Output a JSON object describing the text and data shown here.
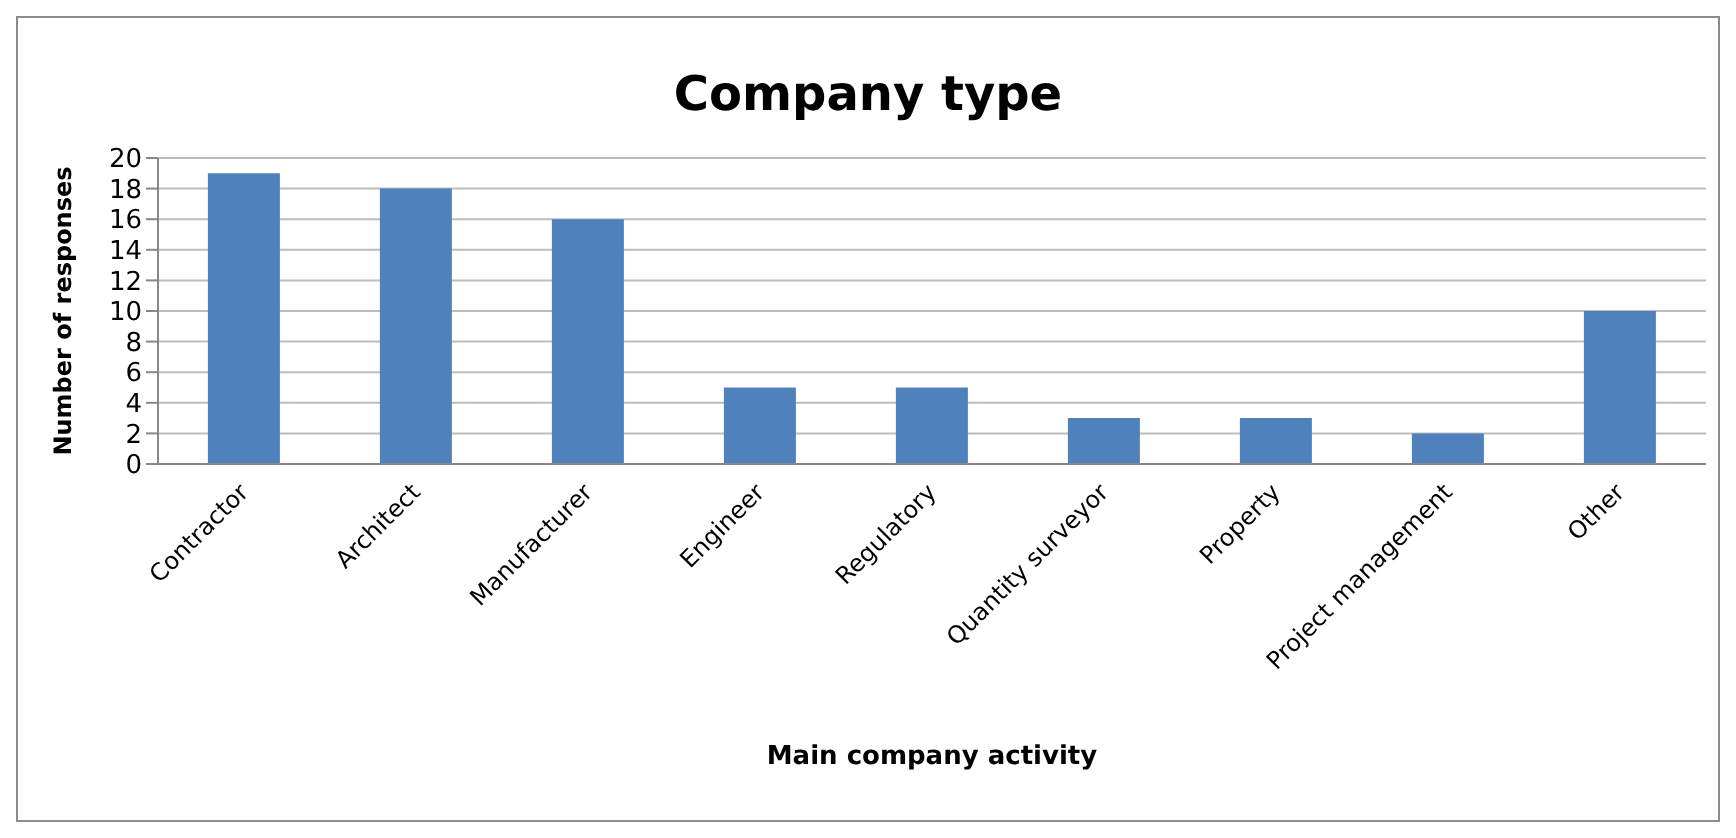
{
  "chart_data": {
    "type": "bar",
    "title": "Company type",
    "xlabel": "Main company activity",
    "ylabel": "Number of responses",
    "categories": [
      "Contractor",
      "Architect",
      "Manufacturer",
      "Engineer",
      "Regulatory",
      "Quantity surveyor",
      "Property",
      "Project management",
      "Other"
    ],
    "values": [
      19,
      18,
      16,
      5,
      5,
      3,
      3,
      2,
      10
    ],
    "color": "#4f81bd",
    "ylim": [
      0,
      20
    ],
    "yticks": [
      0,
      2,
      4,
      6,
      8,
      10,
      12,
      14,
      16,
      18,
      20
    ],
    "grid": "y"
  }
}
